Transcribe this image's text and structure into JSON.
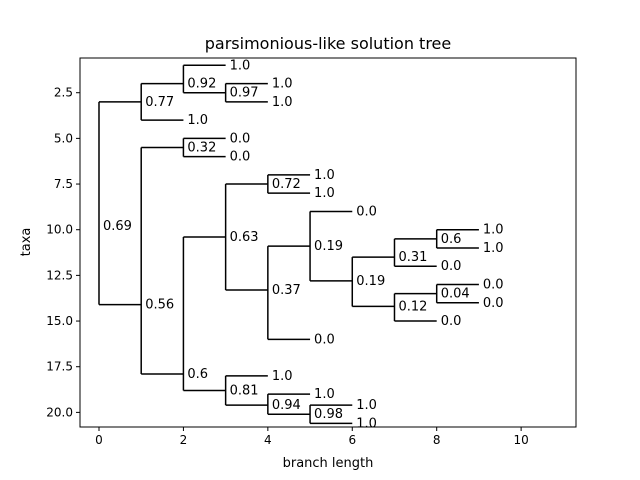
{
  "chart_data": {
    "type": "tree",
    "title": "parsimonious-like solution tree",
    "xlabel": "branch length",
    "ylabel": "taxa",
    "xlim": [
      -0.45,
      11.3
    ],
    "ylim": [
      20.8,
      0.6
    ],
    "x_ticks": [
      0,
      2,
      4,
      6,
      8,
      10
    ],
    "x_tick_labels": [
      "0",
      "2",
      "4",
      "6",
      "8",
      "10"
    ],
    "y_ticks": [
      2.5,
      5.0,
      7.5,
      10.0,
      12.5,
      15.0,
      17.5,
      20.0
    ],
    "y_tick_labels": [
      "2.5",
      "5.0",
      "7.5",
      "10.0",
      "12.5",
      "15.0",
      "17.5",
      "20.0"
    ],
    "grid": false,
    "nodes": [
      {
        "x": 0,
        "y": 9.8,
        "label": "0.69",
        "children": [
          [
            1,
            3.0
          ],
          [
            1,
            14.1
          ]
        ]
      },
      {
        "x": 1,
        "y": 3.0,
        "label": "0.77",
        "children": [
          [
            2,
            2.0
          ],
          [
            2,
            4.0
          ]
        ]
      },
      {
        "x": 2,
        "y": 2.0,
        "label": "0.92",
        "children": [
          [
            3,
            1.0
          ],
          [
            3,
            2.5
          ]
        ]
      },
      {
        "x": 3,
        "y": 2.5,
        "label": "0.97",
        "children": [
          [
            4,
            2.0
          ],
          [
            4,
            3.0
          ]
        ]
      },
      {
        "x": 1,
        "y": 14.1,
        "label": "0.56",
        "children": [
          [
            2,
            5.5
          ],
          [
            2,
            17.9
          ]
        ]
      },
      {
        "x": 2,
        "y": 5.5,
        "label": "0.32",
        "children": [
          [
            3,
            5.0
          ],
          [
            3,
            6.0
          ]
        ]
      },
      {
        "x": 2,
        "y": 17.9,
        "label": "0.6",
        "children": [
          [
            3,
            10.4
          ],
          [
            3,
            18.8
          ]
        ]
      },
      {
        "x": 3,
        "y": 10.4,
        "label": "0.63",
        "children": [
          [
            4,
            7.5
          ],
          [
            4,
            13.3
          ]
        ]
      },
      {
        "x": 4,
        "y": 7.5,
        "label": "0.72",
        "children": [
          [
            5,
            7.0
          ],
          [
            5,
            8.0
          ]
        ]
      },
      {
        "x": 4,
        "y": 13.3,
        "label": "0.37",
        "children": [
          [
            5,
            10.9
          ],
          [
            5,
            16.0
          ]
        ]
      },
      {
        "x": 5,
        "y": 10.9,
        "label": "0.19",
        "children": [
          [
            6,
            9.0
          ],
          [
            6,
            12.8
          ]
        ]
      },
      {
        "x": 6,
        "y": 12.8,
        "label": "0.19",
        "children": [
          [
            7,
            11.5
          ],
          [
            7,
            14.2
          ]
        ]
      },
      {
        "x": 7,
        "y": 11.5,
        "label": "0.31",
        "children": [
          [
            8,
            10.5
          ],
          [
            8,
            12.0
          ]
        ]
      },
      {
        "x": 8,
        "y": 10.5,
        "label": "0.6",
        "children": [
          [
            9,
            10.0
          ],
          [
            9,
            11.0
          ]
        ]
      },
      {
        "x": 7,
        "y": 14.2,
        "label": "0.12",
        "children": [
          [
            8,
            13.5
          ],
          [
            8,
            15.0
          ]
        ]
      },
      {
        "x": 8,
        "y": 13.5,
        "label": "0.04",
        "children": [
          [
            9,
            13.0
          ],
          [
            9,
            14.0
          ]
        ]
      },
      {
        "x": 3,
        "y": 18.8,
        "label": "0.81",
        "children": [
          [
            4,
            18.0
          ],
          [
            4,
            19.6
          ]
        ]
      },
      {
        "x": 4,
        "y": 19.6,
        "label": "0.94",
        "children": [
          [
            5,
            19.0
          ],
          [
            5,
            20.1
          ]
        ]
      },
      {
        "x": 5,
        "y": 20.1,
        "label": "0.98",
        "children": [
          [
            6,
            19.6
          ],
          [
            6,
            20.6
          ]
        ]
      }
    ],
    "leaves": [
      {
        "x": 3,
        "y": 1.0,
        "label": "1.0"
      },
      {
        "x": 4,
        "y": 2.0,
        "label": "1.0"
      },
      {
        "x": 4,
        "y": 3.0,
        "label": "1.0"
      },
      {
        "x": 2,
        "y": 4.0,
        "label": "1.0"
      },
      {
        "x": 3,
        "y": 5.0,
        "label": "0.0"
      },
      {
        "x": 3,
        "y": 6.0,
        "label": "0.0"
      },
      {
        "x": 5,
        "y": 7.0,
        "label": "1.0"
      },
      {
        "x": 5,
        "y": 8.0,
        "label": "1.0"
      },
      {
        "x": 6,
        "y": 9.0,
        "label": "0.0"
      },
      {
        "x": 9,
        "y": 10.0,
        "label": "1.0"
      },
      {
        "x": 9,
        "y": 11.0,
        "label": "1.0"
      },
      {
        "x": 8,
        "y": 12.0,
        "label": "0.0"
      },
      {
        "x": 9,
        "y": 13.0,
        "label": "0.0"
      },
      {
        "x": 9,
        "y": 14.0,
        "label": "0.0"
      },
      {
        "x": 8,
        "y": 15.0,
        "label": "0.0"
      },
      {
        "x": 5,
        "y": 16.0,
        "label": "0.0"
      },
      {
        "x": 4,
        "y": 18.0,
        "label": "1.0"
      },
      {
        "x": 5,
        "y": 19.0,
        "label": "1.0"
      },
      {
        "x": 6,
        "y": 19.6,
        "label": "1.0"
      },
      {
        "x": 6,
        "y": 20.6,
        "label": "1.0"
      }
    ]
  }
}
